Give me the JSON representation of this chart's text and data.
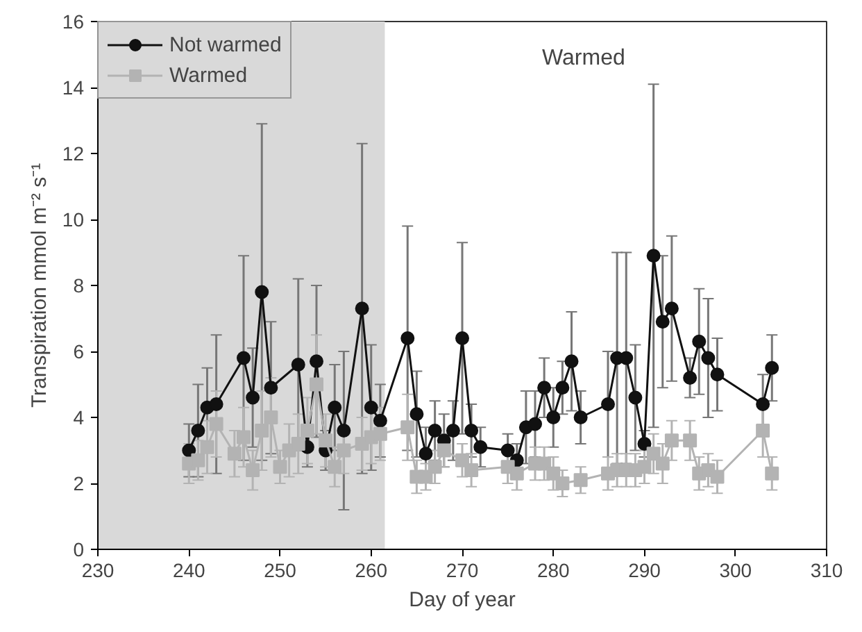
{
  "chart_data": {
    "type": "line",
    "xlabel": "Day of year",
    "ylabel": "Transpiration mmol m⁻² s⁻¹",
    "annotations": [
      "Warmed"
    ],
    "xlim": [
      230,
      310
    ],
    "xticks": [
      230,
      240,
      250,
      260,
      270,
      280,
      290,
      300,
      310
    ],
    "ylim": [
      0,
      16
    ],
    "yticks": [
      0,
      2,
      4,
      6,
      8,
      10,
      12,
      14,
      16
    ],
    "grid": false,
    "legend": "top left",
    "bands": [
      {
        "axis": "x",
        "from": 230,
        "to": 261.5,
        "color": "#d9d9d9"
      }
    ],
    "series": [
      {
        "name": "Not warmed",
        "color": "#111111",
        "marker": "circle",
        "x": [
          240,
          241,
          242,
          243,
          246,
          247,
          248,
          249,
          252,
          253,
          254,
          255,
          256,
          257,
          259,
          260,
          261,
          264,
          265,
          266,
          267,
          268,
          269,
          270,
          271,
          272,
          275,
          276,
          277,
          278,
          279,
          280,
          281,
          282,
          283,
          286,
          287,
          288,
          289,
          290,
          291,
          292,
          293,
          295,
          296,
          297,
          298,
          303,
          304
        ],
        "values": [
          3.0,
          3.6,
          4.3,
          4.4,
          5.8,
          4.6,
          7.8,
          4.9,
          5.6,
          3.1,
          5.7,
          3.0,
          4.3,
          3.6,
          7.3,
          4.3,
          3.9,
          6.4,
          4.1,
          2.9,
          3.6,
          3.3,
          3.6,
          6.4,
          3.6,
          3.1,
          3.0,
          2.7,
          3.7,
          3.8,
          4.9,
          4.0,
          4.9,
          5.7,
          4.0,
          4.4,
          5.8,
          5.8,
          4.6,
          3.2,
          8.9,
          6.9,
          7.3,
          5.2,
          6.3,
          5.8,
          5.3,
          4.4,
          5.5
        ],
        "errors": [
          0.8,
          1.4,
          1.2,
          2.1,
          3.1,
          1.5,
          5.1,
          2.0,
          2.6,
          0.6,
          2.3,
          0.6,
          1.3,
          2.4,
          5.0,
          1.9,
          1.1,
          3.4,
          1.3,
          0.8,
          0.9,
          0.8,
          0.9,
          2.9,
          0.8,
          0.6,
          0.5,
          0.5,
          1.1,
          1.0,
          0.9,
          0.9,
          0.8,
          1.5,
          0.8,
          1.6,
          3.2,
          3.2,
          1.6,
          0.4,
          5.2,
          2.0,
          2.2,
          0.6,
          1.6,
          1.8,
          1.1,
          0.9,
          1.0
        ]
      },
      {
        "name": "Warmed",
        "color": "#b3b3b3",
        "marker": "square",
        "x": [
          240,
          241,
          242,
          243,
          245,
          246,
          247,
          248,
          249,
          250,
          251,
          252,
          253,
          254,
          255,
          256,
          257,
          259,
          260,
          261,
          264,
          265,
          266,
          267,
          268,
          270,
          271,
          275,
          276,
          278,
          279,
          280,
          281,
          283,
          286,
          287,
          288,
          289,
          290,
          291,
          292,
          293,
          295,
          296,
          297,
          298,
          303,
          304
        ],
        "values": [
          2.6,
          2.7,
          3.1,
          3.8,
          2.9,
          3.4,
          2.4,
          3.6,
          4.0,
          2.5,
          3.0,
          3.2,
          3.6,
          5.0,
          3.3,
          2.5,
          3.0,
          3.2,
          3.4,
          3.5,
          3.7,
          2.2,
          2.2,
          2.5,
          3.0,
          2.7,
          2.4,
          2.5,
          2.3,
          2.6,
          2.6,
          2.3,
          2.0,
          2.1,
          2.3,
          2.4,
          2.4,
          2.4,
          2.5,
          2.9,
          2.6,
          3.3,
          3.3,
          2.3,
          2.4,
          2.2,
          3.6,
          2.3
        ],
        "errors": [
          0.6,
          0.6,
          0.8,
          1.0,
          0.7,
          0.9,
          0.6,
          1.2,
          1.2,
          0.5,
          0.8,
          0.9,
          1.0,
          1.5,
          0.8,
          0.6,
          0.7,
          0.8,
          0.8,
          0.8,
          1.0,
          0.5,
          0.4,
          0.5,
          0.5,
          0.5,
          0.5,
          0.5,
          0.5,
          0.5,
          0.5,
          0.5,
          0.4,
          0.4,
          0.5,
          0.5,
          0.5,
          0.5,
          0.5,
          0.6,
          0.6,
          0.6,
          0.6,
          0.5,
          0.5,
          0.5,
          0.8,
          0.5
        ]
      }
    ]
  }
}
